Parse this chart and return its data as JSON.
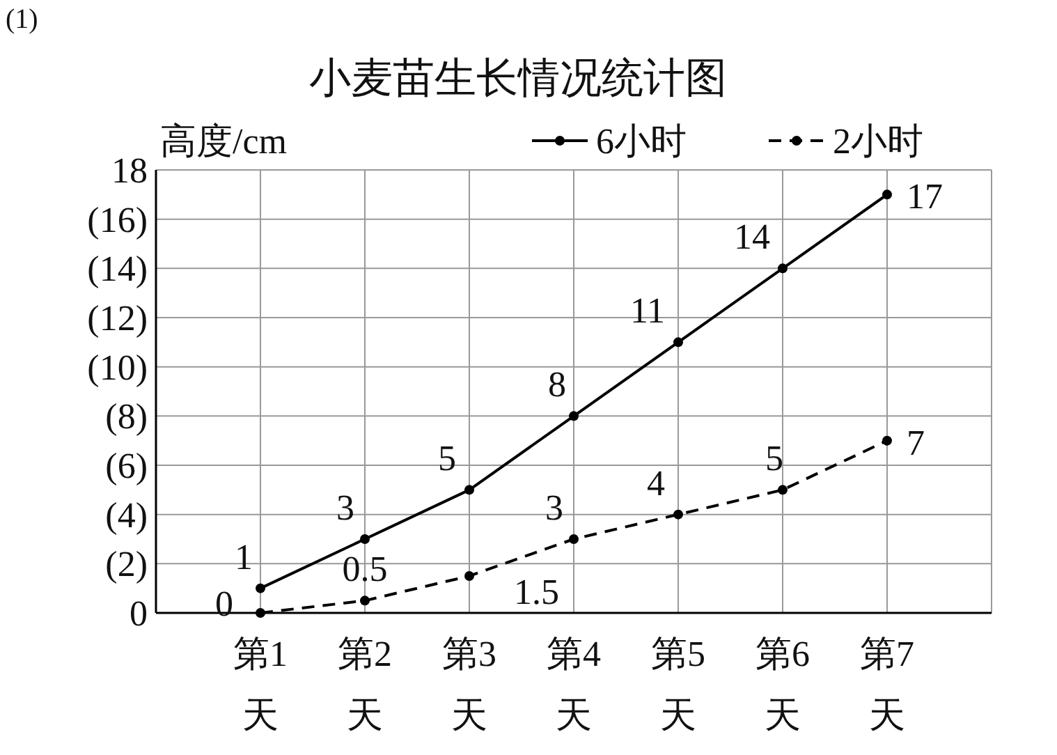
{
  "chart_data": {
    "type": "line",
    "title": "小麦苗生长情况统计图",
    "ylabel": "高度/cm",
    "categories": [
      "第1天",
      "第2天",
      "第3天",
      "第4天",
      "第5天",
      "第6天",
      "第7天"
    ],
    "series": [
      {
        "name": "6小时",
        "color": "#000000",
        "values": [
          1,
          3,
          5,
          8,
          11,
          14,
          17
        ],
        "line_style": "solid"
      },
      {
        "name": "2小时",
        "color": "#000000",
        "values": [
          0,
          0.5,
          1.5,
          3,
          4,
          5,
          7
        ],
        "line_style": "dashed"
      }
    ],
    "ylim": [
      0,
      18
    ],
    "yticks": [
      0,
      {
        "value": 2,
        "label": "(2)"
      },
      {
        "value": 4,
        "label": "(4)"
      },
      {
        "value": 6,
        "label": "(6)"
      },
      {
        "value": 8,
        "label": "(8)"
      },
      {
        "value": 10,
        "label": "(10)"
      },
      {
        "value": 12,
        "label": "(12)"
      },
      {
        "value": 14,
        "label": "(14)"
      },
      {
        "value": 16,
        "label": "(16)"
      },
      18
    ],
    "grid": true,
    "legend": "top right",
    "marker": "circle",
    "data_labels": true,
    "annotations": [
      "(1)"
    ]
  }
}
